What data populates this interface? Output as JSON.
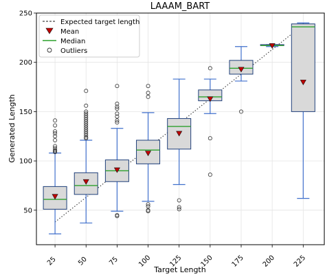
{
  "chart_data": {
    "type": "box",
    "title": "LAAAM_BART",
    "xlabel": "Target Length",
    "ylabel": "Generated Length",
    "categories": [
      "25",
      "50",
      "75",
      "100",
      "125",
      "150",
      "175",
      "200",
      "225"
    ],
    "x_values": [
      25,
      50,
      75,
      100,
      125,
      150,
      175,
      200,
      225
    ],
    "ylim": [
      15,
      250
    ],
    "yticks": [
      50,
      100,
      150,
      200,
      250
    ],
    "grid": true,
    "legend_position": "top-left",
    "legend": {
      "expected": "Expected target length",
      "mean": "Mean",
      "median": "Median",
      "outliers": "Outliers"
    },
    "expected_line": {
      "x": [
        25,
        225
      ],
      "y": [
        38,
        238
      ]
    },
    "boxes": [
      {
        "x": 25,
        "whislo": 26,
        "q1": 51,
        "med": 61,
        "q3": 74,
        "whishi": 108,
        "mean": 64,
        "fliers": [
          109,
          110,
          111,
          113,
          115,
          121,
          125,
          128,
          130,
          136,
          141
        ]
      },
      {
        "x": 50,
        "whislo": 37,
        "q1": 66,
        "med": 75,
        "q3": 88,
        "whishi": 121,
        "mean": 79,
        "fliers": [
          123,
          124,
          126,
          128,
          130,
          132,
          134,
          136,
          138,
          140,
          142,
          144,
          146,
          148,
          150,
          156,
          171
        ]
      },
      {
        "x": 75,
        "whislo": 49,
        "q1": 79,
        "med": 90,
        "q3": 101,
        "whishi": 133,
        "mean": 91,
        "fliers": [
          44,
          45,
          139,
          141,
          145,
          148,
          153,
          155,
          158,
          176
        ]
      },
      {
        "x": 100,
        "whislo": 59,
        "q1": 97,
        "med": 111,
        "q3": 121,
        "whishi": 149,
        "mean": 108,
        "fliers": [
          49,
          50,
          54,
          56,
          165,
          169,
          176
        ]
      },
      {
        "x": 125,
        "whislo": 76,
        "q1": 112,
        "med": 135,
        "q3": 143,
        "whishi": 183,
        "mean": 128,
        "fliers": [
          51,
          53,
          60
        ]
      },
      {
        "x": 150,
        "whislo": 148,
        "q1": 161,
        "med": 165,
        "q3": 172,
        "whishi": 183,
        "mean": 163,
        "fliers": [
          86,
          123,
          194
        ]
      },
      {
        "x": 175,
        "whislo": 181,
        "q1": 188,
        "med": 194,
        "q3": 202,
        "whishi": 216,
        "mean": 193,
        "fliers": [
          150
        ]
      },
      {
        "x": 200,
        "whislo": 216,
        "q1": 217,
        "med": 217,
        "q3": 218,
        "whishi": 218,
        "mean": 217,
        "fliers": []
      },
      {
        "x": 225,
        "whislo": 62,
        "q1": 150,
        "med": 236,
        "q3": 239,
        "whishi": 240,
        "mean": 180,
        "fliers": []
      }
    ]
  },
  "colors": {
    "box_fill": "#d9d9d9",
    "box_edge": "#1f3f7a",
    "whisker": "#3f6fcc",
    "median": "#2ca02c",
    "mean": "#c00000",
    "mean_edge": "#111111",
    "expected": "#444444",
    "grid": "#e4e4e4",
    "outlier": "#333333"
  }
}
